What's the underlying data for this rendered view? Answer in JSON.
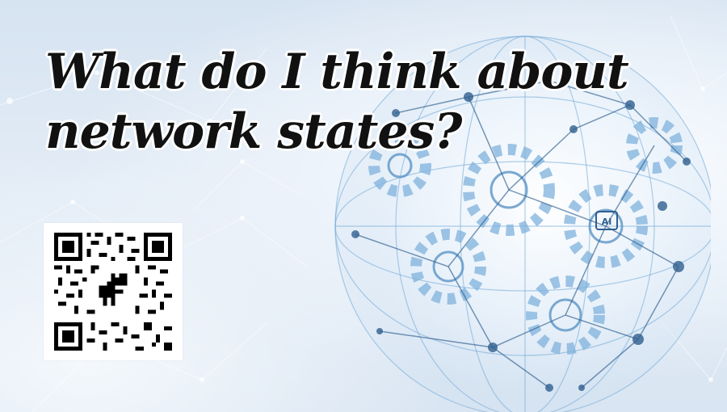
{
  "headline": {
    "line1": "What do I think about",
    "line2": "network states?"
  },
  "icons": {
    "globe": "gear-network-globe-icon",
    "qr": "qr-code-icon",
    "dino": "dinosaur-icon"
  },
  "colors": {
    "background": "#dde8f4",
    "globe_accent": "#6fa8d6",
    "globe_dark": "#2f5f8f",
    "text": "#111111"
  }
}
